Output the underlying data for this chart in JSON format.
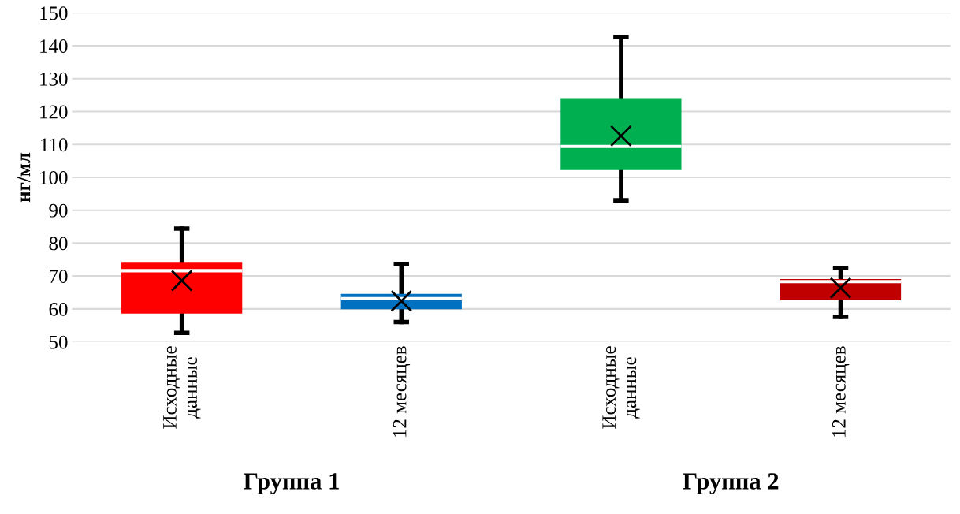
{
  "chart_data": {
    "type": "box",
    "ylabel": "нг/мл",
    "categories": [
      "Исходные\nданные",
      "12 месяцев",
      "Исходные\nданные",
      "12 месяцев"
    ],
    "colors": [
      "#ff0000",
      "#0070c0",
      "#00b050",
      "#c00000"
    ],
    "boxes": [
      {
        "low": 52.7,
        "q1": 58.6,
        "median": 71.6,
        "q3": 74.3,
        "high": 84.4,
        "mean": 68.6
      },
      {
        "low": 56.0,
        "q1": 59.9,
        "median": 63.1,
        "q3": 64.6,
        "high": 73.7,
        "mean": 62.4
      },
      {
        "low": 93.0,
        "q1": 102.2,
        "median": 109.4,
        "q3": 124.1,
        "high": 142.6,
        "mean": 112.6
      },
      {
        "low": 57.6,
        "q1": 62.6,
        "median": 68.3,
        "q3": 69.1,
        "high": 72.5,
        "mean": 66.4
      }
    ],
    "ylim": [
      50,
      150
    ],
    "yticks": [
      50,
      60,
      70,
      80,
      90,
      100,
      110,
      120,
      130,
      140,
      150
    ],
    "grid": "y",
    "marker": "cross",
    "annotations": [
      "Группа 1",
      "Группа 2"
    ]
  }
}
